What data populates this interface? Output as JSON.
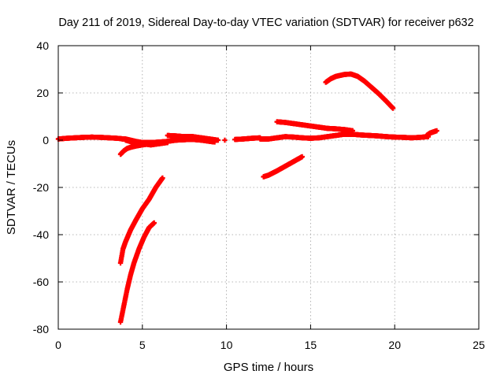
{
  "chart_data": {
    "type": "scatter",
    "title": "Day 211 of 2019, Sidereal Day-to-day VTEC variation (SDTVAR) for receiver p632",
    "xlabel": "GPS time / hours",
    "ylabel": "SDTVAR / TECUs",
    "xlim": [
      0,
      25
    ],
    "ylim": [
      -80,
      40
    ],
    "xticks": [
      0,
      5,
      10,
      15,
      20,
      25
    ],
    "yticks": [
      -80,
      -60,
      -40,
      -20,
      0,
      20,
      40
    ],
    "grid": true,
    "legend": "none",
    "marker": "plus",
    "color": "#ff0000",
    "series": [
      {
        "x": [
          0.0,
          0.5,
          1.0,
          1.5,
          2.0,
          2.5,
          3.0,
          3.5,
          3.8
        ],
        "y": [
          0.5,
          0.8,
          1.0,
          1.2,
          1.3,
          1.2,
          1.0,
          0.8,
          0.6
        ]
      },
      {
        "x": [
          3.8,
          4.0,
          4.3,
          4.6,
          5.0,
          5.5,
          6.0,
          6.5,
          7.0,
          7.5,
          8.0,
          8.5,
          9.0,
          9.3
        ],
        "y": [
          0.5,
          0.5,
          0.0,
          -0.5,
          -1.0,
          -1.0,
          -0.8,
          -0.5,
          0.0,
          0.2,
          0.3,
          0.0,
          -0.5,
          -0.8
        ]
      },
      {
        "x": [
          3.7,
          3.9,
          4.1,
          4.3,
          4.6,
          5.0,
          5.5,
          6.0
        ],
        "y": [
          -6.0,
          -4.5,
          -3.5,
          -3.0,
          -2.5,
          -2.0,
          -1.5,
          -1.0
        ]
      },
      {
        "x": [
          4.0,
          4.5,
          5.0,
          5.5,
          6.0,
          6.5
        ],
        "y": [
          0.0,
          -1.0,
          -1.5,
          -2.0,
          -1.5,
          -1.0
        ]
      },
      {
        "x": [
          6.5,
          7.0,
          7.5,
          8.0,
          8.5,
          9.0,
          9.5
        ],
        "y": [
          2.0,
          1.8,
          1.5,
          1.5,
          1.0,
          0.5,
          0.0
        ]
      },
      {
        "x": [
          9.9
        ],
        "y": [
          0.0
        ]
      },
      {
        "x": [
          10.5,
          11.0,
          11.5,
          12.0
        ],
        "y": [
          0.3,
          0.5,
          0.8,
          1.0
        ]
      },
      {
        "x": [
          12.0,
          12.5,
          13.0,
          13.5,
          14.0,
          14.5,
          15.0,
          15.5,
          16.0,
          16.5,
          17.0,
          17.5,
          18.0,
          18.5,
          19.0,
          19.5,
          20.0,
          20.5,
          21.0,
          21.5,
          22.0
        ],
        "y": [
          0.5,
          0.5,
          1.0,
          1.5,
          1.3,
          1.0,
          0.8,
          1.0,
          1.5,
          2.0,
          2.5,
          2.5,
          2.2,
          2.0,
          1.8,
          1.5,
          1.3,
          1.2,
          1.0,
          1.2,
          1.5
        ]
      },
      {
        "x": [
          13.0,
          13.5,
          14.0,
          14.5,
          15.0,
          15.5,
          16.0,
          16.5,
          17.0,
          17.5
        ],
        "y": [
          7.8,
          7.5,
          7.0,
          6.5,
          6.0,
          5.5,
          5.0,
          4.8,
          4.5,
          4.0
        ]
      },
      {
        "x": [
          12.2,
          12.5,
          13.0,
          13.5,
          14.0,
          14.5
        ],
        "y": [
          -15.5,
          -14.8,
          -13.0,
          -11.0,
          -9.0,
          -7.0
        ]
      },
      {
        "x": [
          15.9,
          16.2,
          16.5,
          17.0,
          17.4,
          17.8,
          18.2,
          18.6,
          19.0,
          19.5,
          19.9
        ],
        "y": [
          24.5,
          26.0,
          27.0,
          27.8,
          28.0,
          27.0,
          25.0,
          22.5,
          20.0,
          16.5,
          13.5
        ]
      },
      {
        "x": [
          21.9,
          22.1,
          22.5
        ],
        "y": [
          2.0,
          3.0,
          4.0
        ]
      },
      {
        "x": [
          3.7,
          3.85,
          4.0,
          4.3,
          4.6,
          5.0,
          5.4,
          5.8,
          6.2
        ],
        "y": [
          -52.0,
          -46.0,
          -43.0,
          -38.0,
          -34.0,
          -29.0,
          -25.0,
          -20.0,
          -16.0
        ]
      },
      {
        "x": [
          3.7,
          3.9,
          4.1,
          4.3,
          4.5,
          4.8,
          5.1,
          5.4,
          5.7
        ],
        "y": [
          -77.0,
          -70.0,
          -63.0,
          -57.0,
          -52.0,
          -46.0,
          -41.0,
          -37.0,
          -35.0
        ]
      }
    ]
  }
}
